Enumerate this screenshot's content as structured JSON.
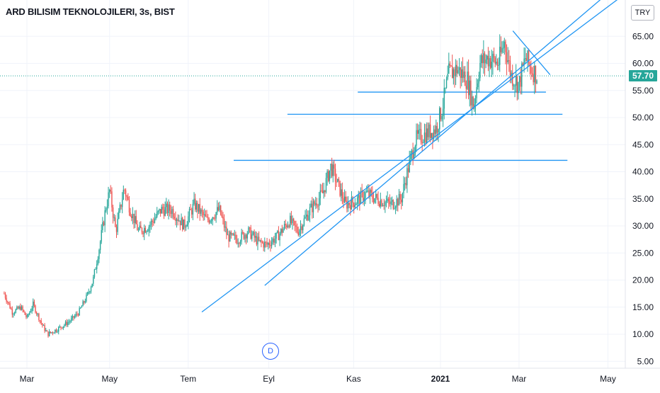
{
  "header": {
    "title": "ARD BILISIM TEKNOLOJILERI, 3s, BIST",
    "currency": "TRY"
  },
  "last_price": {
    "value": 57.7,
    "label": "57.70",
    "color": "#26a69a"
  },
  "event_marker": {
    "label": "D"
  },
  "colors": {
    "up": "#26a69a",
    "down": "#ef5350",
    "trendline": "#2196f3",
    "grid": "#f0f3fa",
    "text": "#131722"
  },
  "chart_data": {
    "type": "candlestick",
    "title": "ARD BILISIM TEKNOLOJILERI, 3s, BIST",
    "ylim": [
      4,
      70
    ],
    "y_ticks": [
      5,
      10,
      15,
      20,
      25,
      30,
      35,
      40,
      45,
      50,
      55,
      60,
      65
    ],
    "y_tick_labels": [
      "5.00",
      "10.00",
      "15.00",
      "20.00",
      "25.00",
      "30.00",
      "35.00",
      "40.00",
      "45.00",
      "50.00",
      "55.00",
      "60.00",
      "65.00"
    ],
    "x_range": [
      0,
      14
    ],
    "x_ticks": [
      {
        "pos": 0.55,
        "label": "Mar"
      },
      {
        "pos": 2.55,
        "label": "May"
      },
      {
        "pos": 4.45,
        "label": "Tem"
      },
      {
        "pos": 6.4,
        "label": "Eyl"
      },
      {
        "pos": 8.45,
        "label": "Kas"
      },
      {
        "pos": 10.55,
        "label": "2021"
      },
      {
        "pos": 12.45,
        "label": "Mar"
      },
      {
        "pos": 14.6,
        "label": "May"
      }
    ],
    "price_path": [
      [
        0.0,
        17.5
      ],
      [
        0.2,
        14
      ],
      [
        0.4,
        15
      ],
      [
        0.55,
        13
      ],
      [
        0.7,
        15.5
      ],
      [
        0.9,
        12
      ],
      [
        1.05,
        10
      ],
      [
        1.3,
        11
      ],
      [
        1.6,
        12.5
      ],
      [
        1.8,
        14
      ],
      [
        2.0,
        17
      ],
      [
        2.15,
        20
      ],
      [
        2.3,
        26
      ],
      [
        2.45,
        33
      ],
      [
        2.55,
        36.5
      ],
      [
        2.7,
        29
      ],
      [
        2.9,
        37
      ],
      [
        3.05,
        33
      ],
      [
        3.25,
        29
      ],
      [
        3.5,
        30
      ],
      [
        3.8,
        33
      ],
      [
        4.05,
        33
      ],
      [
        4.35,
        30
      ],
      [
        4.6,
        34
      ],
      [
        4.9,
        31
      ],
      [
        5.2,
        33
      ],
      [
        5.4,
        28
      ],
      [
        5.65,
        27.5
      ],
      [
        5.9,
        29
      ],
      [
        6.15,
        27
      ],
      [
        6.35,
        26.5
      ],
      [
        6.6,
        28
      ],
      [
        6.9,
        31
      ],
      [
        7.1,
        29
      ],
      [
        7.4,
        33
      ],
      [
        7.7,
        36
      ],
      [
        7.9,
        41
      ],
      [
        8.05,
        38
      ],
      [
        8.25,
        34
      ],
      [
        8.5,
        34.5
      ],
      [
        8.75,
        36
      ],
      [
        9.0,
        35
      ],
      [
        9.35,
        34
      ],
      [
        9.6,
        35
      ],
      [
        9.75,
        40
      ],
      [
        9.95,
        46
      ],
      [
        10.2,
        47
      ],
      [
        10.45,
        48
      ],
      [
        10.6,
        52
      ],
      [
        10.75,
        58
      ],
      [
        10.95,
        59
      ],
      [
        11.2,
        57
      ],
      [
        11.35,
        52
      ],
      [
        11.5,
        60
      ],
      [
        11.7,
        61
      ],
      [
        11.95,
        60
      ],
      [
        12.1,
        64
      ],
      [
        12.25,
        58
      ],
      [
        12.45,
        56
      ],
      [
        12.6,
        61
      ],
      [
        12.75,
        59
      ],
      [
        12.9,
        57.7
      ]
    ],
    "annotations": {
      "channel_upper": [
        [
          6.3,
          19
        ],
        [
          14.9,
          74.9
        ]
      ],
      "channel_lower": [
        [
          4.78,
          14.1
        ],
        [
          15.25,
          74.2
        ]
      ],
      "descending_line": [
        [
          12.3,
          66.0
        ],
        [
          13.2,
          57.9
        ]
      ],
      "horizontal_levels": [
        {
          "from": 5.55,
          "to": 13.62,
          "y": 42.1
        },
        {
          "from": 6.85,
          "to": 13.5,
          "y": 50.6
        },
        {
          "from": 8.55,
          "to": 13.1,
          "y": 54.7
        }
      ]
    }
  }
}
